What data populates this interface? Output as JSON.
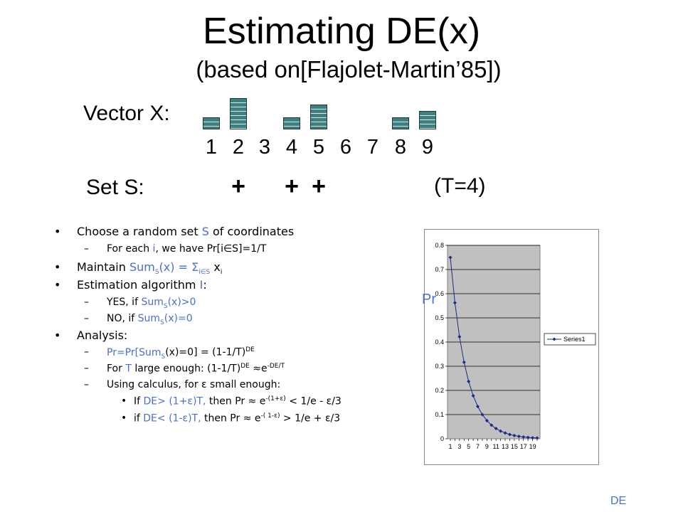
{
  "title": "Estimating DE(x)",
  "subtitle": "(based on[Flajolet-Martin’85])",
  "vector_label": "Vector X:",
  "vector_indices": [
    "1",
    "2",
    "3",
    "4",
    "5",
    "6",
    "7",
    "8",
    "9"
  ],
  "vector_bar_levels": [
    1,
    4,
    0,
    1,
    3,
    0,
    0,
    1,
    2
  ],
  "set_label": "Set S:",
  "set_marks": [
    {
      "index": 2,
      "mark": "+"
    },
    {
      "index": 4,
      "mark": "+"
    },
    {
      "index": 5,
      "mark": "+"
    }
  ],
  "t_label": "(T=4)",
  "bullets": {
    "b1": {
      "pre": "Choose a random set ",
      "S": "S",
      "post": " of coordinates"
    },
    "b1a": {
      "pre": "For each ",
      "i": "i",
      "mid": ", we have Pr[i∈S]=1/T"
    },
    "b2": {
      "pre": "Maintain ",
      "sum": "Sum",
      "S": "S",
      "mid": "(x) = ",
      "sig": "Σ",
      "sub": "i∈S",
      "xi": " x",
      "i": "i"
    },
    "b3": {
      "pre": "Estimation algorithm ",
      "I": "I",
      ":": ":"
    },
    "b3a": {
      "pre": "YES, if ",
      "sum": "Sum",
      "S": "S",
      "post": "(x)>0"
    },
    "b3b": {
      "pre": "NO, if ",
      "sum": "Sum",
      "S": "S",
      "post": "(x)=0"
    },
    "b4": "Analysis:",
    "b4a": {
      "pr": "Pr=Pr[Sum",
      "S": "S",
      "mid": "(x)=0] = (1-1/T)",
      "sup": "DE"
    },
    "b4b": {
      "pre": "For ",
      "T": "T",
      "mid": " large enough: (1-1/T)",
      "sup": "DE",
      "approx": " ≈e",
      "sup2": "-DE/T"
    },
    "b4c": "Using calculus, for ε small enough:",
    "b4c1": {
      "pre": "If ",
      "de": "DE> (1+ε)T,",
      "mid": " then Pr ≈ e",
      "sup": "-(1+ε)",
      "post": " < 1/e - ε/3"
    },
    "b4c2": {
      "pre": "if ",
      "de": "DE< (1-ε)T,",
      "mid": "   then Pr ≈ e",
      "sup": "-( 1-ε)",
      "post": " > 1/e + ε/3"
    }
  },
  "pr_axis_label": "Pr",
  "de_axis_label": "DE",
  "chart_data": {
    "type": "line",
    "x": [
      1,
      2,
      3,
      4,
      5,
      6,
      7,
      8,
      9,
      10,
      11,
      12,
      13,
      14,
      15,
      16,
      17,
      18,
      19,
      20
    ],
    "series": [
      {
        "name": "Series1",
        "values": [
          0.75,
          0.5625,
          0.4219,
          0.3164,
          0.2373,
          0.178,
          0.1335,
          0.1001,
          0.0751,
          0.0563,
          0.0422,
          0.0317,
          0.0238,
          0.0178,
          0.0134,
          0.01,
          0.0075,
          0.0056,
          0.0042,
          0.0032
        ]
      }
    ],
    "x_tick_labels": [
      "1",
      "3",
      "5",
      "7",
      "9",
      "11",
      "13",
      "15",
      "17",
      "19"
    ],
    "y_tick_labels": [
      "0",
      "0.1",
      "0.2",
      "0.3",
      "0.4",
      "0.5",
      "0.6",
      "0.7",
      "0.8"
    ],
    "ylim": [
      0,
      0.8
    ],
    "grid": true,
    "legend": "right",
    "colors": {
      "plot_bg": "#c0c0c0",
      "line": "#1a2a8a"
    }
  }
}
